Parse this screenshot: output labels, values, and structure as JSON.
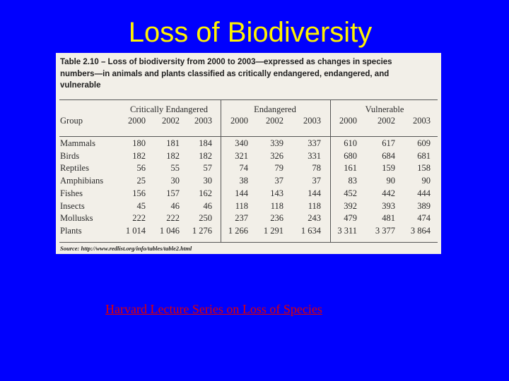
{
  "slide": {
    "title": "Loss of Biodiversity",
    "link_text": "Harvard Lecture Series on Loss of Species"
  },
  "table": {
    "caption": "Table 2.10 – Loss of biodiversity from 2000 to 2003—expressed as changes in species numbers—in animals and plants classified as critically endangered, endangered, and vulnerable",
    "group_header": "Group",
    "column_groups": [
      "Critically Endangered",
      "Endangered",
      "Vulnerable"
    ],
    "years": [
      "2000",
      "2002",
      "2003",
      "2000",
      "2002",
      "2003",
      "2000",
      "2002",
      "2003"
    ],
    "rows": [
      {
        "group": "Mammals",
        "values": [
          "180",
          "181",
          "184",
          "340",
          "339",
          "337",
          "610",
          "617",
          "609"
        ]
      },
      {
        "group": "Birds",
        "values": [
          "182",
          "182",
          "182",
          "321",
          "326",
          "331",
          "680",
          "684",
          "681"
        ]
      },
      {
        "group": "Reptiles",
        "values": [
          "56",
          "55",
          "57",
          "74",
          "79",
          "78",
          "161",
          "159",
          "158"
        ]
      },
      {
        "group": "Amphibians",
        "values": [
          "25",
          "30",
          "30",
          "38",
          "37",
          "37",
          "83",
          "90",
          "90"
        ]
      },
      {
        "group": "Fishes",
        "values": [
          "156",
          "157",
          "162",
          "144",
          "143",
          "144",
          "452",
          "442",
          "444"
        ]
      },
      {
        "group": "Insects",
        "values": [
          "45",
          "46",
          "46",
          "118",
          "118",
          "118",
          "392",
          "393",
          "389"
        ]
      },
      {
        "group": "Mollusks",
        "values": [
          "222",
          "222",
          "250",
          "237",
          "236",
          "243",
          "479",
          "481",
          "474"
        ]
      },
      {
        "group": "Plants",
        "values": [
          "1 014",
          "1 046",
          "1 276",
          "1 266",
          "1 291",
          "1 634",
          "3 311",
          "3 377",
          "3 864"
        ]
      }
    ],
    "source": "Source: http://www.redlist.org/info/tables/table2.html"
  }
}
